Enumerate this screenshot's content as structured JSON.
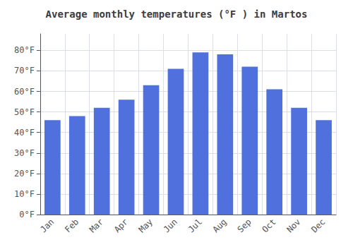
{
  "chart_data": {
    "type": "bar",
    "title": "Average monthly temperatures (°F ) in Martos",
    "categories": [
      "Jan",
      "Feb",
      "Mar",
      "Apr",
      "May",
      "Jun",
      "Jul",
      "Aug",
      "Sep",
      "Oct",
      "Nov",
      "Dec"
    ],
    "values": [
      46,
      48,
      52,
      56,
      63,
      71,
      79,
      78,
      72,
      61,
      52,
      46
    ],
    "ylim": [
      0,
      88
    ],
    "yticks": [
      {
        "value": 0,
        "label": "0°F"
      },
      {
        "value": 10,
        "label": "10°F"
      },
      {
        "value": 20,
        "label": "20°F"
      },
      {
        "value": 30,
        "label": "30°F"
      },
      {
        "value": 40,
        "label": "40°F"
      },
      {
        "value": 50,
        "label": "50°F"
      },
      {
        "value": 60,
        "label": "60°F"
      },
      {
        "value": 70,
        "label": "70°F"
      },
      {
        "value": 80,
        "label": "80°F"
      }
    ],
    "grid": true
  }
}
